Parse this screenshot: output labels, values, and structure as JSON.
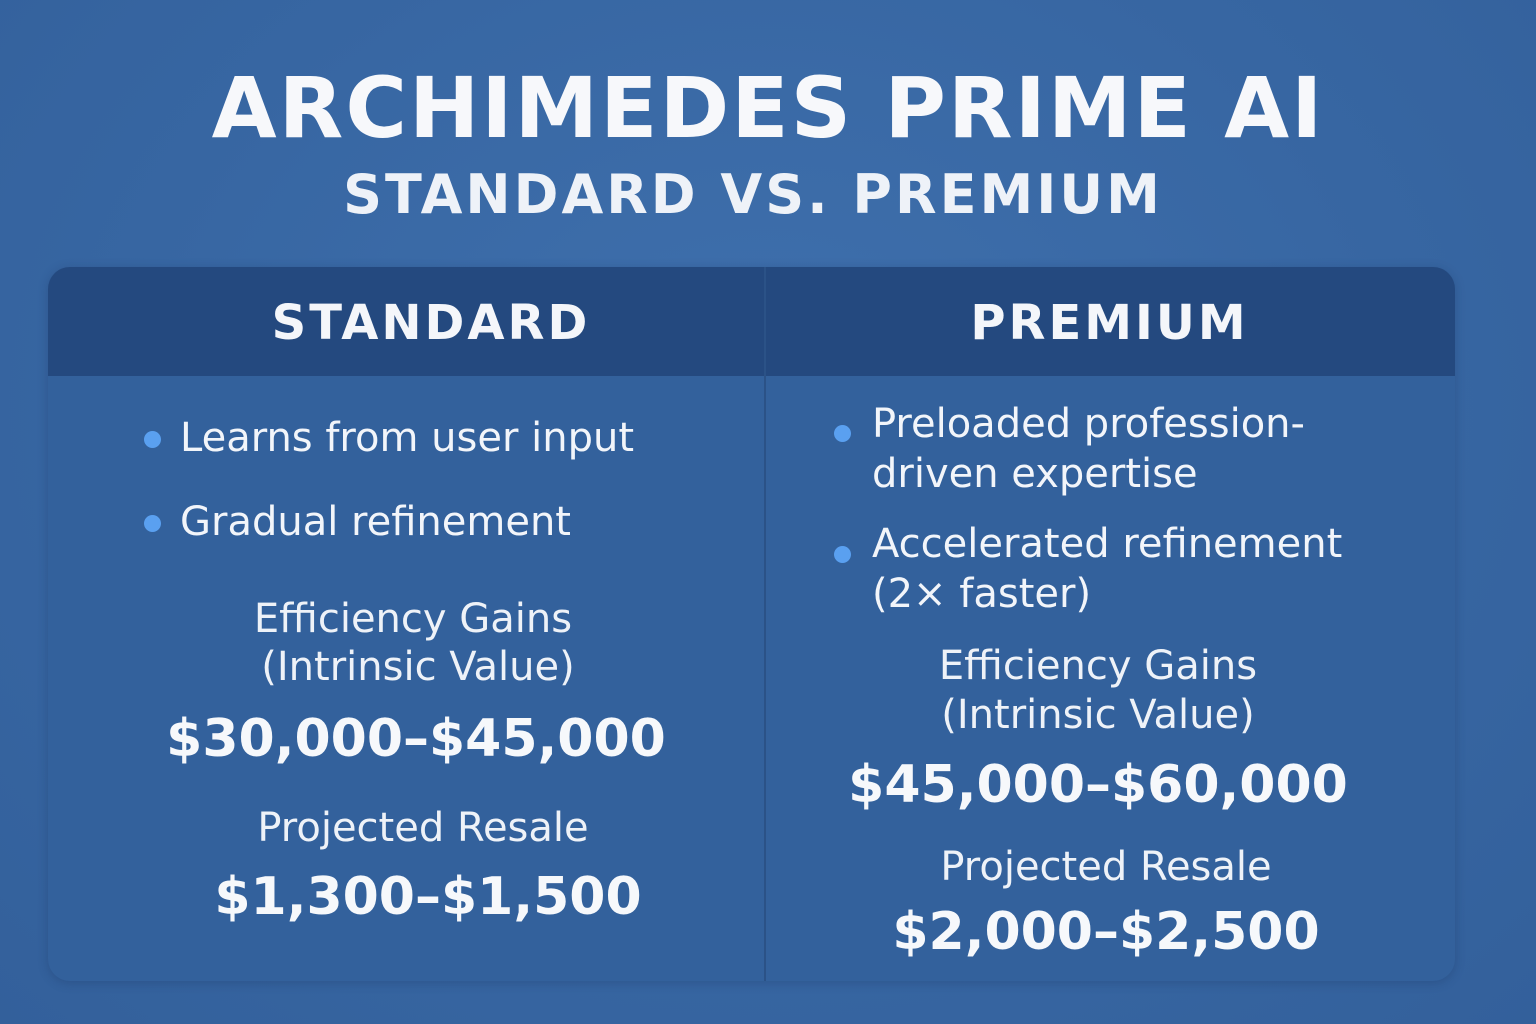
{
  "title": "ARCHIMEDES PRIME AI",
  "subtitle": "STANDARD VS. PREMIUM",
  "colors": {
    "background": "#3a69a6",
    "header_row": "#24497f",
    "bullet_dot": "#5aa0f0"
  },
  "standard": {
    "heading": "STANDARD",
    "bullets": [
      "Learns from user input",
      "Gradual refinement"
    ],
    "efficiency_label_line1": "Efficiency Gains",
    "efficiency_label_line2": "(Intrinsic Value)",
    "efficiency_value": "$30,000–$45,000",
    "resale_label": "Projected Resale",
    "resale_value": "$1,300–$1,500"
  },
  "premium": {
    "heading": "PREMIUM",
    "bullets": [
      {
        "line1": "Preloaded profession-",
        "line2": "driven expertise"
      },
      {
        "line1": "Accelerated refinement",
        "line2": "(2× faster)"
      }
    ],
    "efficiency_label_line1": "Efficiency Gains",
    "efficiency_label_line2": "(Intrinsic Value)",
    "efficiency_value": "$45,000–$60,000",
    "resale_label": "Projected Resale",
    "resale_value": "$2,000–$2,500"
  }
}
